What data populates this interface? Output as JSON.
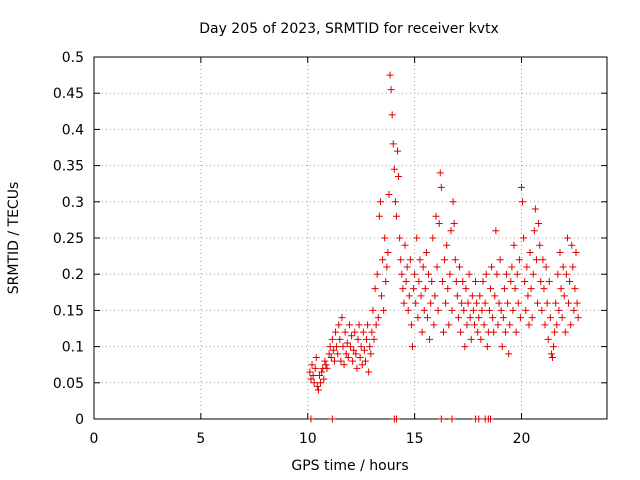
{
  "chart_data": {
    "type": "scatter",
    "title": "Day 205 of 2023, SRMTID for receiver kvtx",
    "xlabel": "GPS time / hours",
    "ylabel": "SRMTID / TECUs",
    "xlim": [
      0,
      24
    ],
    "ylim": [
      0,
      0.5
    ],
    "xticks": [
      0,
      5,
      10,
      15,
      20
    ],
    "xtick_labels": [
      "0",
      "5",
      "10",
      "15",
      "20"
    ],
    "yticks": [
      0,
      0.05,
      0.1,
      0.15,
      0.2,
      0.25,
      0.3,
      0.35,
      0.4,
      0.45,
      0.5
    ],
    "ytick_labels": [
      "0",
      "0.05",
      "0.1",
      "0.15",
      "0.2",
      "0.25",
      "0.3",
      "0.35",
      "0.4",
      "0.45",
      "0.5"
    ],
    "grid": true,
    "marker": "+",
    "color": "#e00000",
    "series": [
      {
        "name": "SRMTID",
        "points": [
          [
            10.1,
            0.065
          ],
          [
            10.15,
            0.055
          ],
          [
            10.2,
            0.075
          ],
          [
            10.25,
            0.06
          ],
          [
            10.3,
            0.05
          ],
          [
            10.35,
            0.07
          ],
          [
            10.4,
            0.085
          ],
          [
            10.45,
            0.045
          ],
          [
            10.5,
            0.04
          ],
          [
            10.55,
            0.06
          ],
          [
            10.6,
            0.05
          ],
          [
            10.65,
            0.065
          ],
          [
            10.7,
            0.07
          ],
          [
            10.75,
            0.055
          ],
          [
            10.8,
            0.08
          ],
          [
            10.85,
            0.075
          ],
          [
            10.9,
            0.07
          ],
          [
            11.0,
            0.09
          ],
          [
            11.05,
            0.1
          ],
          [
            11.1,
            0.085
          ],
          [
            11.15,
            0.11
          ],
          [
            11.2,
            0.095
          ],
          [
            11.25,
            0.08
          ],
          [
            11.3,
            0.12
          ],
          [
            11.35,
            0.1
          ],
          [
            11.4,
            0.09
          ],
          [
            11.45,
            0.13
          ],
          [
            11.5,
            0.11
          ],
          [
            11.55,
            0.08
          ],
          [
            11.6,
            0.14
          ],
          [
            11.65,
            0.1
          ],
          [
            11.7,
            0.075
          ],
          [
            11.75,
            0.12
          ],
          [
            11.8,
            0.09
          ],
          [
            11.85,
            0.105
          ],
          [
            11.9,
            0.085
          ],
          [
            11.95,
            0.13
          ],
          [
            12.0,
            0.1
          ],
          [
            12.05,
            0.115
          ],
          [
            12.1,
            0.08
          ],
          [
            12.15,
            0.095
          ],
          [
            12.2,
            0.12
          ],
          [
            12.25,
            0.09
          ],
          [
            12.3,
            0.07
          ],
          [
            12.35,
            0.11
          ],
          [
            12.4,
            0.13
          ],
          [
            12.45,
            0.085
          ],
          [
            12.5,
            0.1
          ],
          [
            12.55,
            0.075
          ],
          [
            12.6,
            0.12
          ],
          [
            12.65,
            0.095
          ],
          [
            12.7,
            0.08
          ],
          [
            12.75,
            0.11
          ],
          [
            12.8,
            0.13
          ],
          [
            12.85,
            0.065
          ],
          [
            12.9,
            0.1
          ],
          [
            12.95,
            0.09
          ],
          [
            13.0,
            0.12
          ],
          [
            13.05,
            0.15
          ],
          [
            13.1,
            0.11
          ],
          [
            13.15,
            0.18
          ],
          [
            13.2,
            0.13
          ],
          [
            13.25,
            0.2
          ],
          [
            13.3,
            0.14
          ],
          [
            13.35,
            0.28
          ],
          [
            13.4,
            0.3
          ],
          [
            13.45,
            0.17
          ],
          [
            13.5,
            0.22
          ],
          [
            13.55,
            0.15
          ],
          [
            13.6,
            0.25
          ],
          [
            13.65,
            0.19
          ],
          [
            13.7,
            0.21
          ],
          [
            13.75,
            0.23
          ],
          [
            13.8,
            0.31
          ],
          [
            13.85,
            0.475
          ],
          [
            13.9,
            0.455
          ],
          [
            13.95,
            0.42
          ],
          [
            14.0,
            0.38
          ],
          [
            14.05,
            0.345
          ],
          [
            14.1,
            0.3
          ],
          [
            14.15,
            0.28
          ],
          [
            14.2,
            0.37
          ],
          [
            14.25,
            0.335
          ],
          [
            14.3,
            0.25
          ],
          [
            14.35,
            0.22
          ],
          [
            14.4,
            0.2
          ],
          [
            14.45,
            0.18
          ],
          [
            14.5,
            0.16
          ],
          [
            14.55,
            0.24
          ],
          [
            14.6,
            0.19
          ],
          [
            14.65,
            0.21
          ],
          [
            14.7,
            0.15
          ],
          [
            14.75,
            0.17
          ],
          [
            14.8,
            0.22
          ],
          [
            14.85,
            0.13
          ],
          [
            14.9,
            0.1
          ],
          [
            14.95,
            0.18
          ],
          [
            15.0,
            0.2
          ],
          [
            15.05,
            0.16
          ],
          [
            15.1,
            0.25
          ],
          [
            15.15,
            0.14
          ],
          [
            15.2,
            0.19
          ],
          [
            15.25,
            0.22
          ],
          [
            15.3,
            0.17
          ],
          [
            15.35,
            0.12
          ],
          [
            15.4,
            0.21
          ],
          [
            15.45,
            0.15
          ],
          [
            15.5,
            0.18
          ],
          [
            15.55,
            0.23
          ],
          [
            15.6,
            0.14
          ],
          [
            15.65,
            0.2
          ],
          [
            15.7,
            0.11
          ],
          [
            15.75,
            0.16
          ],
          [
            15.8,
            0.19
          ],
          [
            15.85,
            0.25
          ],
          [
            15.9,
            0.13
          ],
          [
            15.95,
            0.17
          ],
          [
            16.0,
            0.28
          ],
          [
            16.05,
            0.21
          ],
          [
            16.1,
            0.15
          ],
          [
            16.15,
            0.27
          ],
          [
            16.2,
            0.34
          ],
          [
            16.25,
            0.32
          ],
          [
            16.3,
            0.19
          ],
          [
            16.35,
            0.12
          ],
          [
            16.4,
            0.22
          ],
          [
            16.45,
            0.16
          ],
          [
            16.5,
            0.24
          ],
          [
            16.55,
            0.18
          ],
          [
            16.6,
            0.13
          ],
          [
            16.65,
            0.2
          ],
          [
            16.7,
            0.26
          ],
          [
            16.75,
            0.15
          ],
          [
            16.8,
            0.3
          ],
          [
            16.85,
            0.27
          ],
          [
            16.9,
            0.22
          ],
          [
            16.95,
            0.19
          ],
          [
            17.0,
            0.17
          ],
          [
            17.05,
            0.14
          ],
          [
            17.1,
            0.21
          ],
          [
            17.15,
            0.12
          ],
          [
            17.2,
            0.16
          ],
          [
            17.25,
            0.19
          ],
          [
            17.3,
            0.15
          ],
          [
            17.35,
            0.1
          ],
          [
            17.4,
            0.18
          ],
          [
            17.45,
            0.13
          ],
          [
            17.5,
            0.16
          ],
          [
            17.55,
            0.2
          ],
          [
            17.6,
            0.14
          ],
          [
            17.65,
            0.11
          ],
          [
            17.7,
            0.17
          ],
          [
            17.75,
            0.15
          ],
          [
            17.8,
            0.13
          ],
          [
            17.85,
            0.19
          ],
          [
            17.9,
            0.16
          ],
          [
            17.95,
            0.12
          ],
          [
            18.0,
            0.14
          ],
          [
            18.05,
            0.17
          ],
          [
            18.1,
            0.11
          ],
          [
            18.15,
            0.15
          ],
          [
            18.2,
            0.19
          ],
          [
            18.25,
            0.13
          ],
          [
            18.3,
            0.16
          ],
          [
            18.35,
            0.2
          ],
          [
            18.4,
            0.1
          ],
          [
            18.45,
            0.12
          ],
          [
            18.5,
            0.15
          ],
          [
            18.55,
            0.18
          ],
          [
            18.6,
            0.21
          ],
          [
            18.65,
            0.14
          ],
          [
            18.7,
            0.12
          ],
          [
            18.75,
            0.17
          ],
          [
            18.8,
            0.26
          ],
          [
            18.85,
            0.2
          ],
          [
            18.9,
            0.13
          ],
          [
            18.95,
            0.16
          ],
          [
            19.0,
            0.22
          ],
          [
            19.05,
            0.15
          ],
          [
            19.1,
            0.1
          ],
          [
            19.15,
            0.14
          ],
          [
            19.2,
            0.18
          ],
          [
            19.25,
            0.12
          ],
          [
            19.3,
            0.2
          ],
          [
            19.35,
            0.16
          ],
          [
            19.4,
            0.09
          ],
          [
            19.45,
            0.13
          ],
          [
            19.5,
            0.19
          ],
          [
            19.55,
            0.21
          ],
          [
            19.6,
            0.15
          ],
          [
            19.65,
            0.24
          ],
          [
            19.7,
            0.18
          ],
          [
            19.75,
            0.12
          ],
          [
            19.8,
            0.2
          ],
          [
            19.85,
            0.16
          ],
          [
            19.9,
            0.22
          ],
          [
            19.95,
            0.14
          ],
          [
            20.0,
            0.32
          ],
          [
            20.05,
            0.3
          ],
          [
            20.1,
            0.25
          ],
          [
            20.15,
            0.19
          ],
          [
            20.2,
            0.15
          ],
          [
            20.25,
            0.21
          ],
          [
            20.3,
            0.17
          ],
          [
            20.35,
            0.13
          ],
          [
            20.4,
            0.23
          ],
          [
            20.45,
            0.18
          ],
          [
            20.5,
            0.14
          ],
          [
            20.55,
            0.2
          ],
          [
            20.6,
            0.26
          ],
          [
            20.65,
            0.29
          ],
          [
            20.7,
            0.22
          ],
          [
            20.75,
            0.16
          ],
          [
            20.8,
            0.27
          ],
          [
            20.85,
            0.24
          ],
          [
            20.9,
            0.19
          ],
          [
            20.95,
            0.15
          ],
          [
            21.0,
            0.22
          ],
          [
            21.05,
            0.18
          ],
          [
            21.1,
            0.13
          ],
          [
            21.15,
            0.21
          ],
          [
            21.2,
            0.16
          ],
          [
            21.25,
            0.11
          ],
          [
            21.3,
            0.19
          ],
          [
            21.35,
            0.14
          ],
          [
            21.4,
            0.09
          ],
          [
            21.45,
            0.085
          ],
          [
            21.5,
            0.1
          ],
          [
            21.55,
            0.12
          ],
          [
            21.6,
            0.16
          ],
          [
            21.65,
            0.13
          ],
          [
            21.7,
            0.2
          ],
          [
            21.75,
            0.15
          ],
          [
            21.8,
            0.23
          ],
          [
            21.85,
            0.18
          ],
          [
            21.9,
            0.14
          ],
          [
            21.95,
            0.21
          ],
          [
            22.0,
            0.17
          ],
          [
            22.05,
            0.12
          ],
          [
            22.1,
            0.2
          ],
          [
            22.15,
            0.25
          ],
          [
            22.2,
            0.16
          ],
          [
            22.25,
            0.19
          ],
          [
            22.3,
            0.13
          ],
          [
            22.35,
            0.24
          ],
          [
            22.4,
            0.21
          ],
          [
            22.45,
            0.15
          ],
          [
            22.5,
            0.18
          ],
          [
            22.55,
            0.23
          ],
          [
            22.6,
            0.16
          ],
          [
            22.65,
            0.14
          ]
        ],
        "zero_points_x": [
          10.15,
          11.15,
          14.05,
          14.15,
          16.25,
          16.75,
          17.85,
          18.0,
          18.3,
          18.45,
          18.55
        ]
      }
    ]
  }
}
